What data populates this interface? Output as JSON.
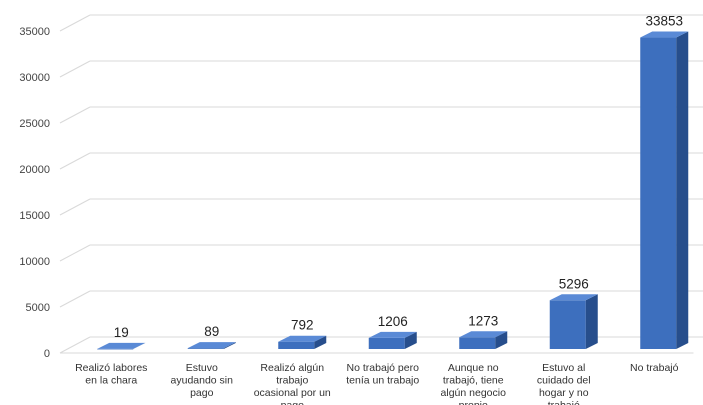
{
  "chart_data": {
    "type": "bar",
    "style": "3d-column",
    "categories": [
      [
        "Realizó labores",
        "en la chara"
      ],
      [
        "Estuvo",
        "ayudando sin",
        "pago"
      ],
      [
        "Realizó algún",
        "trabajo",
        "ocasional por un",
        "pago"
      ],
      [
        "No trabajó pero",
        "tenía un trabajo"
      ],
      [
        "Aunque no",
        "trabajó, tiene",
        "algún negocio",
        "propio"
      ],
      [
        "Estuvo al",
        "cuidado del",
        "hogar y no",
        "trabajó"
      ],
      [
        "No trabajó"
      ]
    ],
    "values": [
      19,
      89,
      792,
      1206,
      1273,
      5296,
      33853
    ],
    "data_labels": [
      "19",
      "89",
      "792",
      "1206",
      "1273",
      "5296",
      "33853"
    ],
    "y_ticks": [
      0,
      5000,
      10000,
      15000,
      20000,
      25000,
      30000,
      35000
    ],
    "ylim": [
      0,
      35000
    ],
    "grid": true,
    "legend": "none",
    "colors": {
      "bar_front": "#3d6fbe",
      "bar_top": "#5a8ad6",
      "bar_side": "#274e8c",
      "grid": "#d9d9d9"
    }
  }
}
